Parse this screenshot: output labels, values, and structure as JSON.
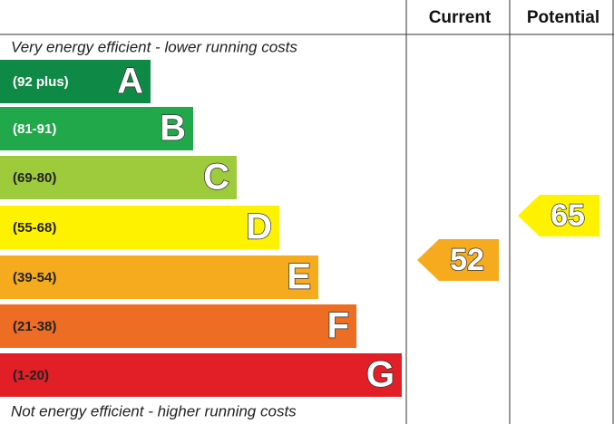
{
  "header": {
    "current": "Current",
    "potential": "Potential"
  },
  "top_note": "Very energy efficient - lower running costs",
  "bottom_note": "Not energy efficient - higher running costs",
  "bands": [
    {
      "range": "(92 plus)",
      "letter": "A",
      "color": "#0f8a46"
    },
    {
      "range": "(81-91)",
      "letter": "B",
      "color": "#21a84a"
    },
    {
      "range": "(69-80)",
      "letter": "C",
      "color": "#9dcb3c"
    },
    {
      "range": "(55-68)",
      "letter": "D",
      "color": "#fff200"
    },
    {
      "range": "(39-54)",
      "letter": "E",
      "color": "#f6ab1e"
    },
    {
      "range": "(21-38)",
      "letter": "F",
      "color": "#ee6d24"
    },
    {
      "range": "(1-20)",
      "letter": "G",
      "color": "#e21e26"
    }
  ],
  "current": {
    "value": 52,
    "color": "#f6ab1e"
  },
  "potential": {
    "value": 65,
    "color": "#fff200"
  }
}
